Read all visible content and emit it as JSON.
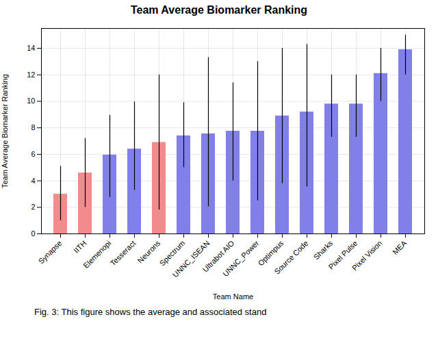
{
  "chart_data": {
    "type": "bar",
    "title": "Team Average Biomarker Ranking",
    "xlabel": "Team Name",
    "ylabel": "Team Average Biomarker Ranking",
    "categories": [
      "Synapse",
      "IITH",
      "Elemenopi",
      "Tesseract",
      "Neurons",
      "Spectrum",
      "UNNC_ISEAN",
      "Ultrabot AIO",
      "UNNC_Power",
      "Optimpus",
      "Source Code",
      "Sharks",
      "Pixel Pulse",
      "Pixel Vision",
      "MEA"
    ],
    "values": [
      3.0,
      4.6,
      5.95,
      6.4,
      6.9,
      7.4,
      7.55,
      7.75,
      7.75,
      8.9,
      9.2,
      9.8,
      9.8,
      12.1,
      13.9
    ],
    "err_low": [
      2.0,
      2.6,
      3.2,
      3.1,
      5.1,
      2.4,
      5.5,
      3.75,
      5.25,
      5.1,
      5.65,
      2.5,
      2.5,
      2.1,
      1.9
    ],
    "err_high": [
      2.1,
      2.6,
      3.0,
      3.55,
      5.1,
      2.5,
      5.75,
      3.65,
      5.25,
      5.1,
      5.1,
      2.2,
      2.2,
      1.9,
      1.1
    ],
    "colors": [
      "#f28b8b",
      "#f28b8b",
      "#8080e8",
      "#8080e8",
      "#f28b8b",
      "#8080e8",
      "#8080e8",
      "#8080e8",
      "#8080e8",
      "#8080e8",
      "#8080e8",
      "#8080e8",
      "#8080e8",
      "#8080e8",
      "#8080e8"
    ],
    "ylim": [
      0,
      15.5
    ],
    "yticks": [
      0,
      2,
      4,
      6,
      8,
      10,
      12,
      14
    ],
    "grid": true,
    "caption": "Fig. 3: This figure shows the average and associated stand"
  }
}
